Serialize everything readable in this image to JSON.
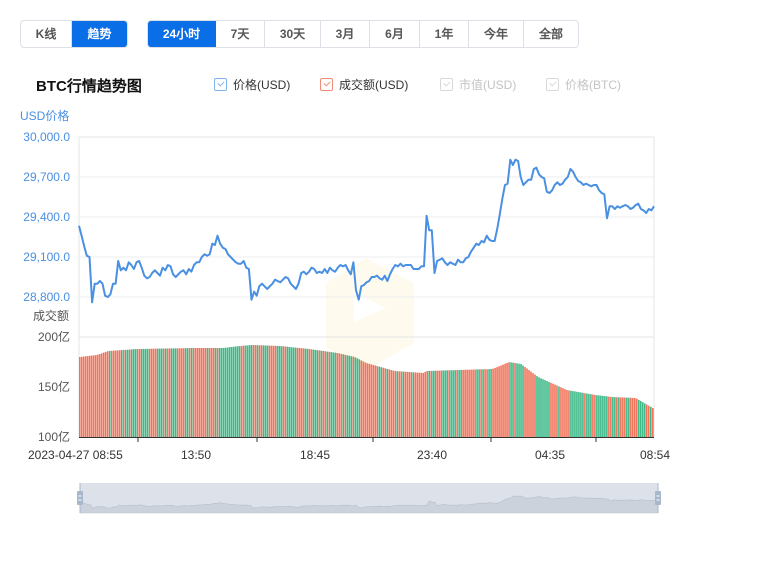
{
  "toolbar": {
    "mode_buttons": [
      {
        "label": "K线",
        "active": false
      },
      {
        "label": "趋势",
        "active": true
      }
    ],
    "range_buttons": [
      {
        "label": "24小时",
        "active": true
      },
      {
        "label": "7天",
        "active": false
      },
      {
        "label": "30天",
        "active": false
      },
      {
        "label": "3月",
        "active": false
      },
      {
        "label": "6月",
        "active": false
      },
      {
        "label": "1年",
        "active": false
      },
      {
        "label": "今年",
        "active": false
      },
      {
        "label": "全部",
        "active": false
      }
    ]
  },
  "chart_header": {
    "title": "BTC行情趋势图",
    "legend": [
      {
        "label": "价格(USD)",
        "checked": true,
        "enabled": true,
        "color": "#4a90e2"
      },
      {
        "label": "成交额(USD)",
        "checked": true,
        "enabled": true,
        "color": "#f0735a"
      },
      {
        "label": "市值(USD)",
        "checked": true,
        "enabled": false,
        "color": "#d8d8d8"
      },
      {
        "label": "价格(BTC)",
        "checked": true,
        "enabled": false,
        "color": "#d8d8d8"
      }
    ]
  },
  "axes": {
    "price_title": "USD价格",
    "volume_title": "成交额"
  },
  "colors": {
    "price_line": "#4a90e2",
    "volume_up": "#f0735a",
    "volume_down": "#3db887",
    "grid": "#eeeeee",
    "axis": "#333333",
    "button_active": "#0a6ee6",
    "navigator_bg": "#dce1ea"
  },
  "chart_data": {
    "type": "line",
    "title": "BTC行情趋势图",
    "xlabel": "",
    "ylabel": "USD价格",
    "x_tick_labels": [
      "2023-04-27 08:55",
      "13:50",
      "18:45",
      "23:40",
      "04:35",
      "08:54"
    ],
    "price_axis": {
      "ticks": [
        "30,000.0",
        "29,700.0",
        "29,400.0",
        "29,100.0",
        "28,800.0"
      ],
      "ylim": [
        28800,
        30000
      ]
    },
    "volume_axis": {
      "ticks": [
        "200亿",
        "150亿",
        "100亿"
      ],
      "ylim": [
        100,
        200
      ],
      "unit": "亿"
    },
    "grid": true,
    "legend_position": "top",
    "series": [
      {
        "name": "价格(USD)",
        "type": "line",
        "values": [
          29335,
          29260,
          29180,
          29110,
          29100,
          28760,
          28900,
          28900,
          28920,
          28900,
          28810,
          28800,
          28820,
          28900,
          28900,
          29070,
          29000,
          29020,
          29000,
          29060,
          29040,
          29010,
          29060,
          29070,
          29020,
          28960,
          28940,
          28950,
          28980,
          29000,
          28980,
          28960,
          29020,
          29000,
          29040,
          29030,
          28970,
          28950,
          28970,
          28990,
          29000,
          28970,
          29010,
          28990,
          29040,
          29060,
          29060,
          29100,
          29120,
          29110,
          29120,
          29200,
          29190,
          29260,
          29200,
          29170,
          29160,
          29120,
          29100,
          29080,
          29060,
          29050,
          29050,
          29070,
          29020,
          29010,
          28780,
          28840,
          28810,
          28880,
          28900,
          28880,
          28860,
          28880,
          28900,
          28930,
          28920,
          28910,
          28930,
          28950,
          28940,
          28900,
          28880,
          28860,
          28900,
          28980,
          28990,
          28970,
          28990,
          29020,
          29010,
          28980,
          28990,
          28980,
          29010,
          28980,
          29020,
          29000,
          28990,
          29020,
          29040,
          29030,
          29040,
          29000,
          28970,
          29060,
          28850,
          28780,
          28880,
          28890,
          28910,
          28920,
          28950,
          28950,
          28960,
          28940,
          28930,
          28960,
          28920,
          28970,
          29010,
          29040,
          29030,
          29050,
          29030,
          29040,
          29040,
          29040,
          29010,
          29010,
          29010,
          29030,
          29030,
          29410,
          29300,
          29300,
          28980,
          29070,
          29080,
          29090,
          29060,
          29040,
          29060,
          29050,
          29040,
          29080,
          29060,
          29060,
          29090,
          29100,
          29140,
          29170,
          29200,
          29190,
          29220,
          29210,
          29260,
          29230,
          29220,
          29220,
          29310,
          29420,
          29540,
          29640,
          29650,
          29830,
          29790,
          29830,
          29820,
          29700,
          29640,
          29660,
          29680,
          29680,
          29760,
          29770,
          29720,
          29700,
          29690,
          29590,
          29580,
          29600,
          29640,
          29660,
          29640,
          29650,
          29680,
          29700,
          29760,
          29740,
          29700,
          29670,
          29660,
          29640,
          29650,
          29640,
          29630,
          29640,
          29640,
          29600,
          29580,
          29570,
          29390,
          29480,
          29480,
          29460,
          29480,
          29470,
          29480,
          29490,
          29480,
          29460,
          29470,
          29490,
          29500,
          29460,
          29450,
          29430,
          29460,
          29450,
          29480
        ]
      },
      {
        "name": "成交额(USD)",
        "type": "bar",
        "unit": "亿",
        "values_start_end": {
          "start": 180,
          "peak_mid": 192,
          "around_23_40": 162,
          "local_peak": 175,
          "end": 129
        }
      }
    ]
  },
  "navigator": {
    "range_start": 0,
    "range_end": 100
  }
}
